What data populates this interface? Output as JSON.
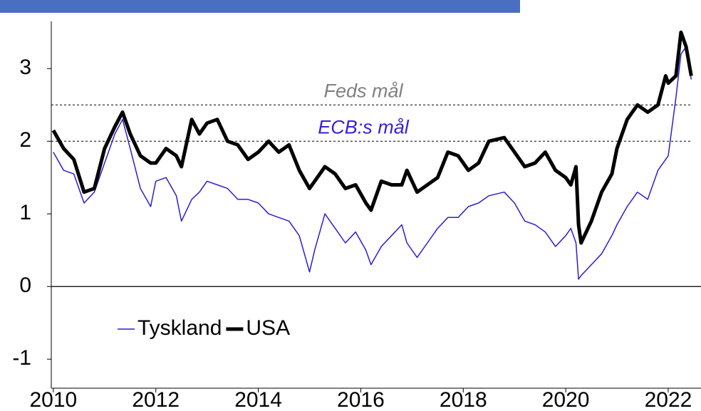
{
  "chart_data": {
    "type": "line",
    "x": [
      2010.0,
      2010.2,
      2010.4,
      2010.6,
      2010.8,
      2011.0,
      2011.2,
      2011.35,
      2011.5,
      2011.7,
      2011.9,
      2012.0,
      2012.2,
      2012.4,
      2012.5,
      2012.7,
      2012.85,
      2013.0,
      2013.2,
      2013.4,
      2013.6,
      2013.8,
      2014.0,
      2014.2,
      2014.4,
      2014.6,
      2014.8,
      2015.0,
      2015.1,
      2015.3,
      2015.5,
      2015.7,
      2015.9,
      2016.1,
      2016.2,
      2016.4,
      2016.6,
      2016.8,
      2016.9,
      2017.1,
      2017.3,
      2017.5,
      2017.7,
      2017.9,
      2018.1,
      2018.3,
      2018.5,
      2018.8,
      2019.0,
      2019.2,
      2019.4,
      2019.6,
      2019.8,
      2020.0,
      2020.1,
      2020.2,
      2020.25,
      2020.3,
      2020.5,
      2020.7,
      2020.9,
      2021.0,
      2021.2,
      2021.4,
      2021.6,
      2021.8,
      2021.95,
      2022.0,
      2022.15,
      2022.25,
      2022.35,
      2022.45
    ],
    "series": [
      {
        "name": "Tyskland",
        "color": "#2b1fd0",
        "width": 1.5,
        "values": [
          1.85,
          1.6,
          1.55,
          1.15,
          1.3,
          1.7,
          2.1,
          2.3,
          1.9,
          1.35,
          1.1,
          1.45,
          1.5,
          1.25,
          0.9,
          1.2,
          1.3,
          1.45,
          1.4,
          1.35,
          1.2,
          1.2,
          1.15,
          1.0,
          0.95,
          0.9,
          0.7,
          0.2,
          0.5,
          1.0,
          0.8,
          0.6,
          0.75,
          0.5,
          0.3,
          0.55,
          0.7,
          0.85,
          0.6,
          0.4,
          0.6,
          0.8,
          0.95,
          0.95,
          1.1,
          1.15,
          1.25,
          1.3,
          1.15,
          0.9,
          0.85,
          0.75,
          0.55,
          0.7,
          0.8,
          0.6,
          0.1,
          0.15,
          0.3,
          0.45,
          0.7,
          0.85,
          1.1,
          1.3,
          1.2,
          1.6,
          1.75,
          1.8,
          2.6,
          3.2,
          3.3,
          2.85
        ]
      },
      {
        "name": "USA",
        "color": "#000000",
        "width": 5,
        "values": [
          2.15,
          1.9,
          1.75,
          1.3,
          1.35,
          1.9,
          2.2,
          2.4,
          2.1,
          1.8,
          1.7,
          1.7,
          1.9,
          1.8,
          1.65,
          2.3,
          2.1,
          2.25,
          2.3,
          2.0,
          1.95,
          1.75,
          1.85,
          2.0,
          1.85,
          1.95,
          1.6,
          1.35,
          1.45,
          1.65,
          1.55,
          1.35,
          1.4,
          1.15,
          1.05,
          1.45,
          1.4,
          1.4,
          1.6,
          1.3,
          1.4,
          1.5,
          1.85,
          1.8,
          1.6,
          1.7,
          2.0,
          2.05,
          1.85,
          1.65,
          1.7,
          1.85,
          1.6,
          1.5,
          1.4,
          1.65,
          0.85,
          0.6,
          0.9,
          1.3,
          1.55,
          1.9,
          2.3,
          2.5,
          2.4,
          2.5,
          2.9,
          2.8,
          2.9,
          3.5,
          3.3,
          2.9
        ]
      }
    ],
    "reference_lines": [
      {
        "value": 2.5,
        "label": "Feds mål",
        "color": "#808080"
      },
      {
        "value": 2,
        "label": "ECB:s mål",
        "color": "#3a1fd6"
      }
    ],
    "xlim": [
      2009.96,
      2022.64
    ],
    "xticks": [
      2010,
      2012,
      2014,
      2016,
      2018,
      2020,
      2022
    ],
    "ylim": [
      -1.4,
      3.65
    ],
    "yticks": [
      -1,
      0,
      1,
      2,
      3
    ],
    "legend": "lower left"
  }
}
